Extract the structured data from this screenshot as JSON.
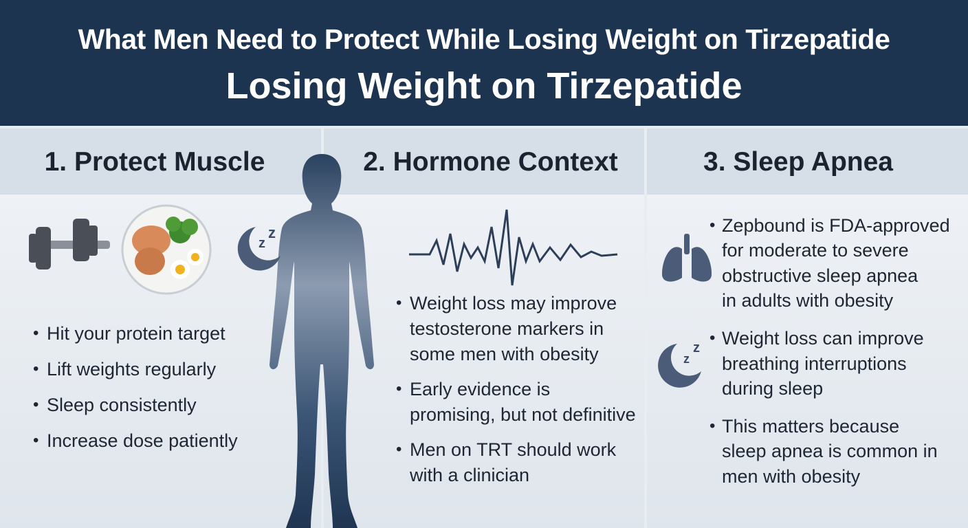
{
  "header": {
    "title": "What Men Need to Protect While Losing Weight on Tirzepatide",
    "subtitle": "Losing Weight on Tirzepatide"
  },
  "columns": [
    {
      "heading": "1. Protect Muscle",
      "bullets": [
        [
          "Hit your protein target"
        ],
        [
          "Lift weights regularly"
        ],
        [
          "Sleep consistently"
        ],
        [
          "Increase dose patiently"
        ]
      ]
    },
    {
      "heading": "2. Hormone Context",
      "bullets": [
        [
          "Weight loss may improve",
          "testosterone markers in",
          "some men with obesity"
        ],
        [
          "Early evidence is",
          "promising, but not definitive"
        ],
        [
          "Men on TRT should work",
          "with a clinician"
        ]
      ]
    },
    {
      "heading": "3. Sleep Apnea",
      "bullets": [
        [
          "Zepbound is FDA-approved",
          "for moderate to severe",
          "obstructive sleep apnea",
          "in adults with obesity"
        ],
        [
          "Weight loss can improve",
          "breathing interruptions",
          "during sleep"
        ],
        [
          "This matters because",
          "sleep apnea is common in",
          "men with obesity"
        ]
      ]
    }
  ]
}
